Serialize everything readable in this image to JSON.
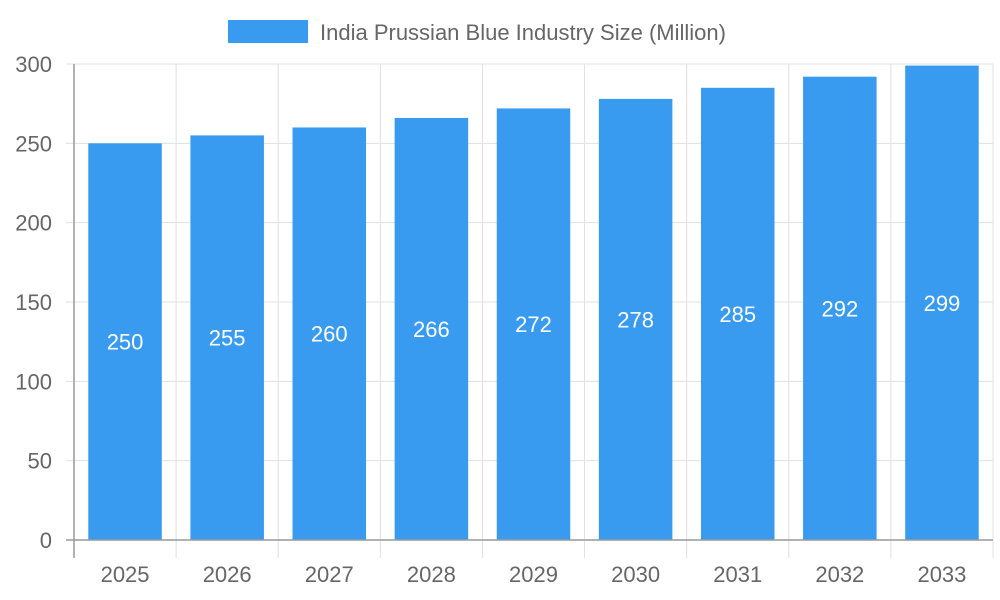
{
  "chart_data": {
    "type": "bar",
    "title": "",
    "xlabel": "",
    "ylabel": "",
    "categories": [
      "2025",
      "2026",
      "2027",
      "2028",
      "2029",
      "2030",
      "2031",
      "2032",
      "2033"
    ],
    "series": [
      {
        "name": "India Prussian Blue Industry Size (Million)",
        "values": [
          250,
          255,
          260,
          266,
          272,
          278,
          285,
          292,
          299
        ],
        "color": "#389bf0"
      }
    ],
    "ylim": [
      0,
      300
    ],
    "yticks": [
      0,
      50,
      100,
      150,
      200,
      250,
      300
    ],
    "grid": true,
    "legend": "top-center",
    "data_labels": true
  }
}
